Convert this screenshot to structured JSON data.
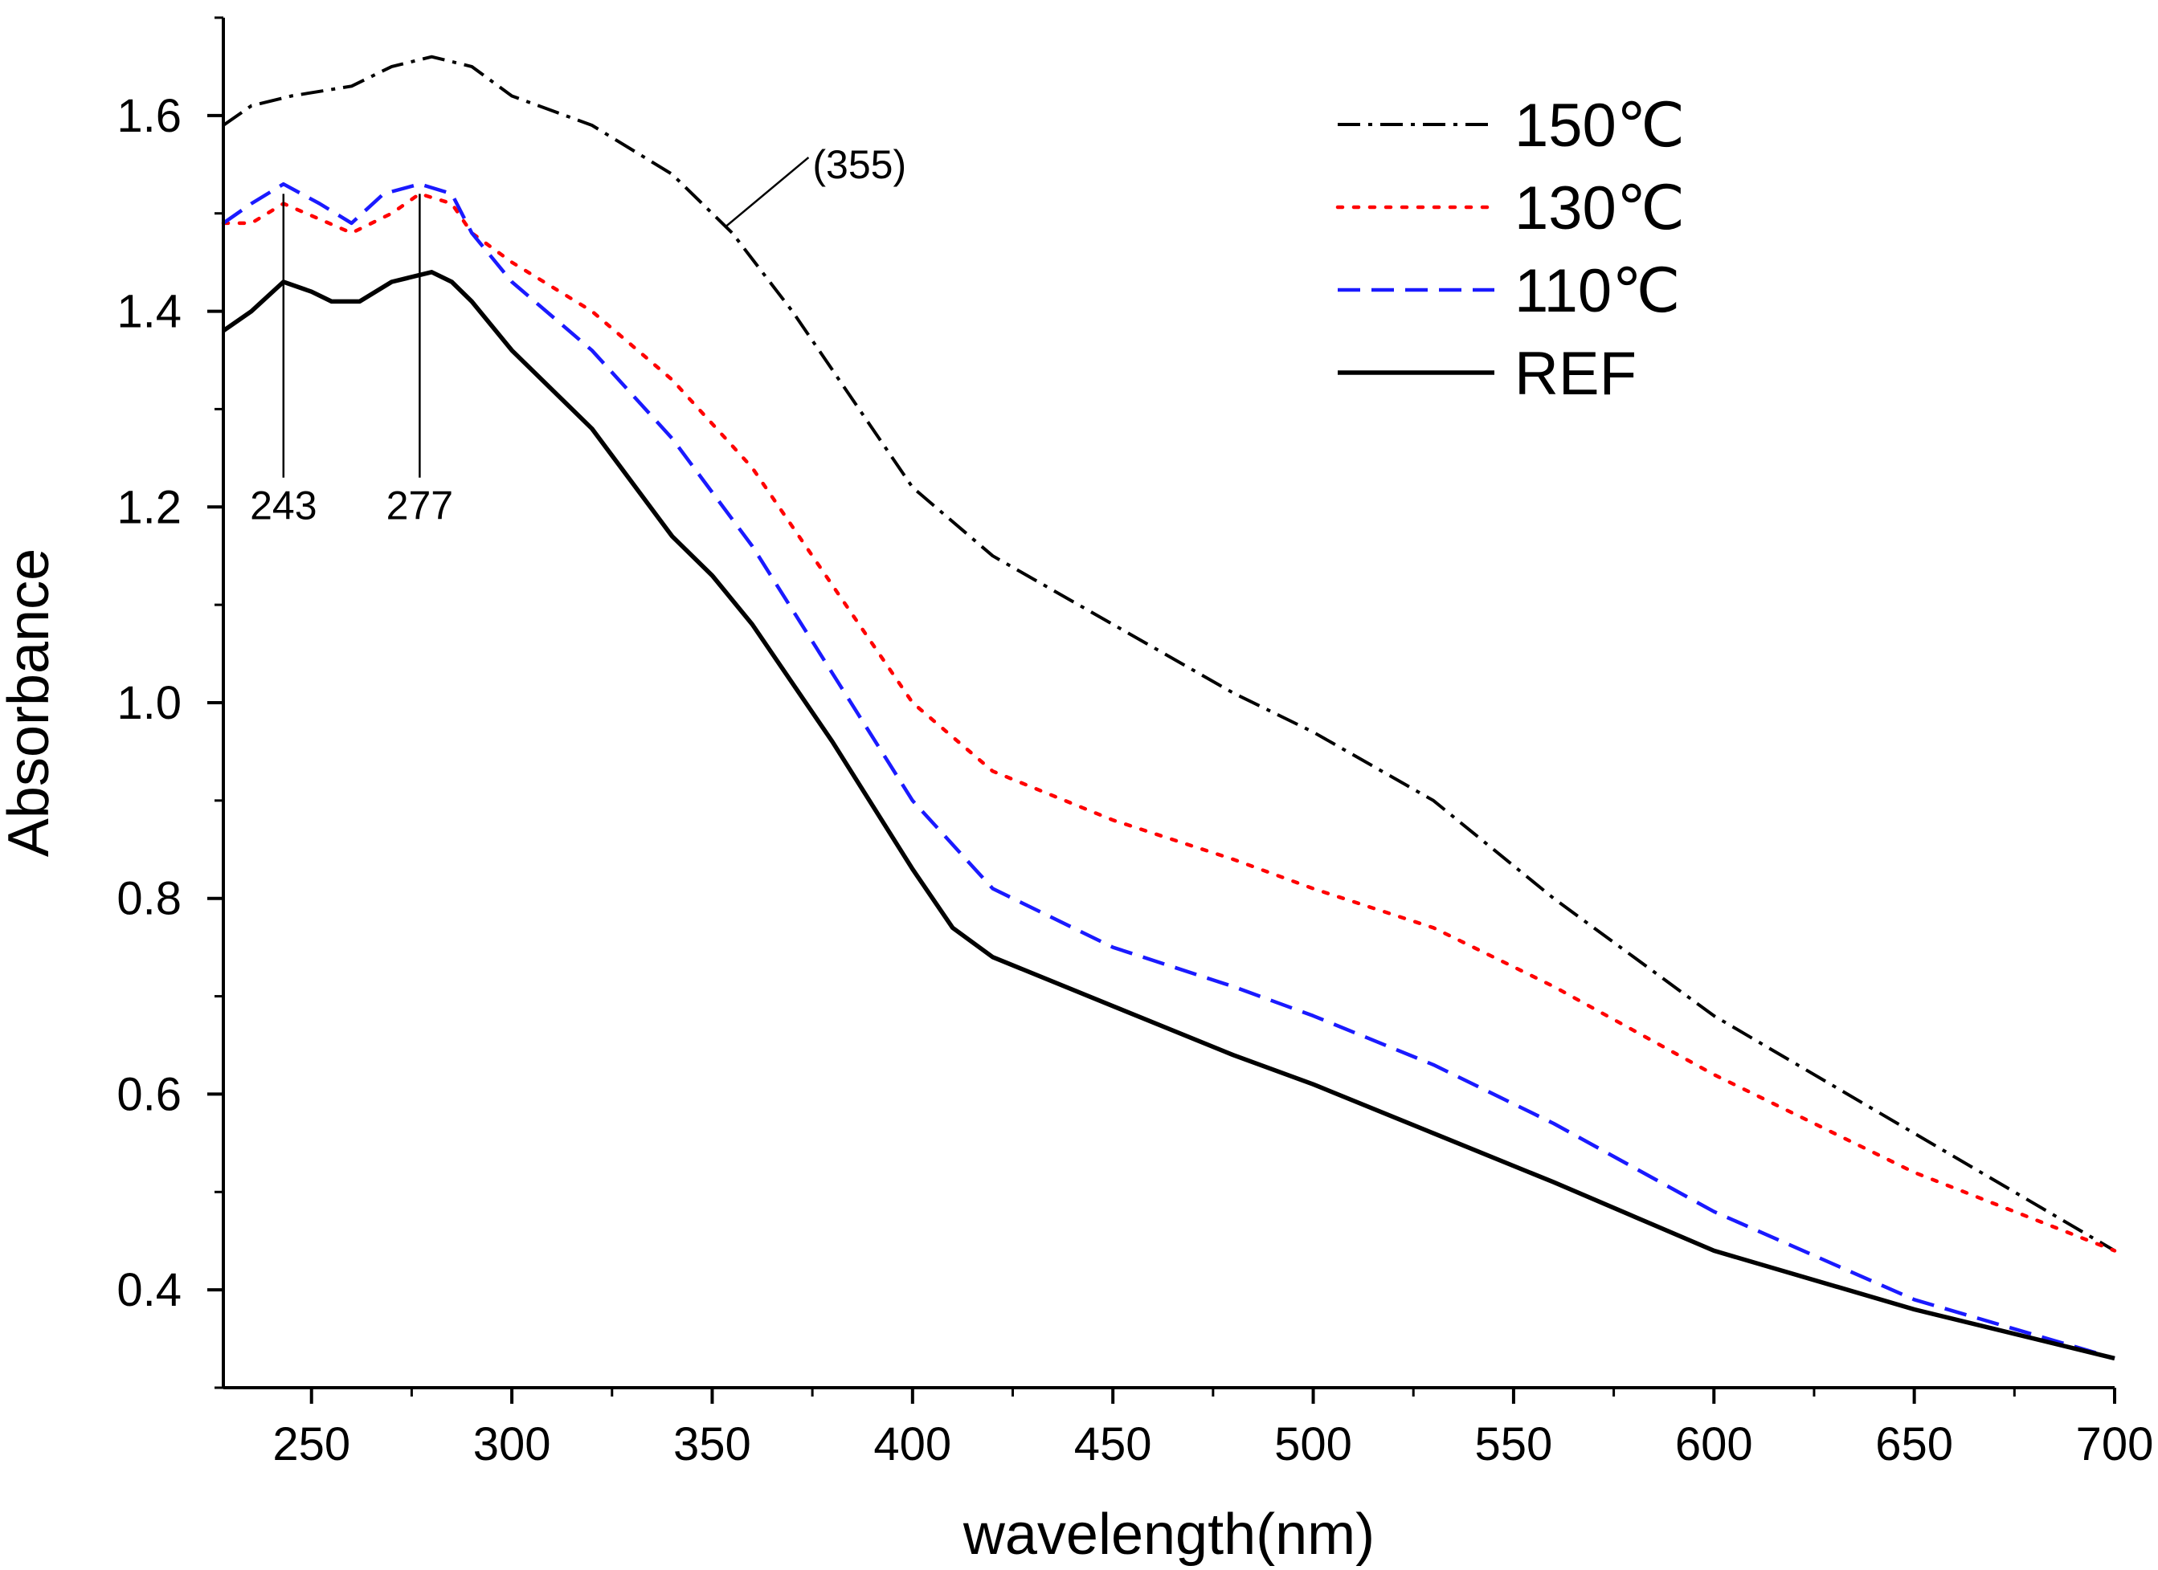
{
  "chart_data": {
    "type": "line",
    "title": "",
    "xlabel": "wavelength(nm)",
    "ylabel": "Absorbance",
    "xlim": [
      228,
      700
    ],
    "ylim": [
      0.3,
      1.7
    ],
    "x_ticks": [
      250,
      300,
      350,
      400,
      450,
      500,
      550,
      600,
      650,
      700
    ],
    "y_ticks": [
      0.4,
      0.6,
      0.8,
      1.0,
      1.2,
      1.4,
      1.6
    ],
    "x_tick_labels": [
      "250",
      "300",
      "350",
      "400",
      "450",
      "500",
      "550",
      "600",
      "650",
      "700"
    ],
    "y_tick_labels": [
      "0.4",
      "0.6",
      "0.8",
      "1.0",
      "1.2",
      "1.4",
      "1.6"
    ],
    "grid": false,
    "legend_position": "top-right",
    "series": [
      {
        "name": "150℃",
        "style": "dash-dot",
        "color": "#000000",
        "x": [
          228,
          235,
          245,
          260,
          270,
          280,
          290,
          300,
          320,
          340,
          355,
          370,
          385,
          400,
          420,
          450,
          480,
          500,
          530,
          560,
          600,
          650,
          700
        ],
        "values": [
          1.59,
          1.61,
          1.62,
          1.63,
          1.65,
          1.66,
          1.65,
          1.62,
          1.59,
          1.54,
          1.48,
          1.4,
          1.31,
          1.22,
          1.15,
          1.08,
          1.01,
          0.97,
          0.9,
          0.8,
          0.68,
          0.56,
          0.44
        ]
      },
      {
        "name": "130℃",
        "style": "dotted",
        "color": "#ff0000",
        "x": [
          228,
          235,
          243,
          260,
          270,
          277,
          285,
          290,
          300,
          320,
          340,
          360,
          380,
          400,
          420,
          450,
          480,
          500,
          530,
          560,
          600,
          650,
          700
        ],
        "values": [
          1.49,
          1.49,
          1.51,
          1.48,
          1.5,
          1.52,
          1.51,
          1.48,
          1.45,
          1.4,
          1.33,
          1.24,
          1.12,
          1.0,
          0.93,
          0.88,
          0.84,
          0.81,
          0.77,
          0.71,
          0.62,
          0.52,
          0.44
        ]
      },
      {
        "name": "110℃",
        "style": "dashed",
        "color": "#1a1aff",
        "x": [
          228,
          235,
          243,
          252,
          260,
          268,
          277,
          285,
          290,
          300,
          320,
          340,
          360,
          380,
          400,
          420,
          450,
          480,
          500,
          530,
          560,
          600,
          650,
          700
        ],
        "values": [
          1.49,
          1.51,
          1.53,
          1.51,
          1.49,
          1.52,
          1.53,
          1.52,
          1.48,
          1.43,
          1.36,
          1.27,
          1.16,
          1.03,
          0.9,
          0.81,
          0.75,
          0.71,
          0.68,
          0.63,
          0.57,
          0.48,
          0.39,
          0.33
        ]
      },
      {
        "name": "REF",
        "style": "solid",
        "color": "#000000",
        "x": [
          228,
          235,
          243,
          250,
          255,
          262,
          270,
          280,
          285,
          290,
          300,
          320,
          340,
          350,
          360,
          380,
          400,
          410,
          420,
          450,
          480,
          500,
          530,
          560,
          600,
          650,
          700
        ],
        "values": [
          1.38,
          1.4,
          1.43,
          1.42,
          1.41,
          1.41,
          1.43,
          1.44,
          1.43,
          1.41,
          1.36,
          1.28,
          1.17,
          1.13,
          1.08,
          0.96,
          0.83,
          0.77,
          0.74,
          0.69,
          0.64,
          0.61,
          0.56,
          0.51,
          0.44,
          0.38,
          0.33
        ]
      }
    ],
    "annotations": [
      {
        "text": "243",
        "x": 243,
        "y": 1.52
      },
      {
        "text": "277",
        "x": 277,
        "y": 1.52
      },
      {
        "text": "(355)",
        "x": 355,
        "y": 1.48
      }
    ]
  }
}
